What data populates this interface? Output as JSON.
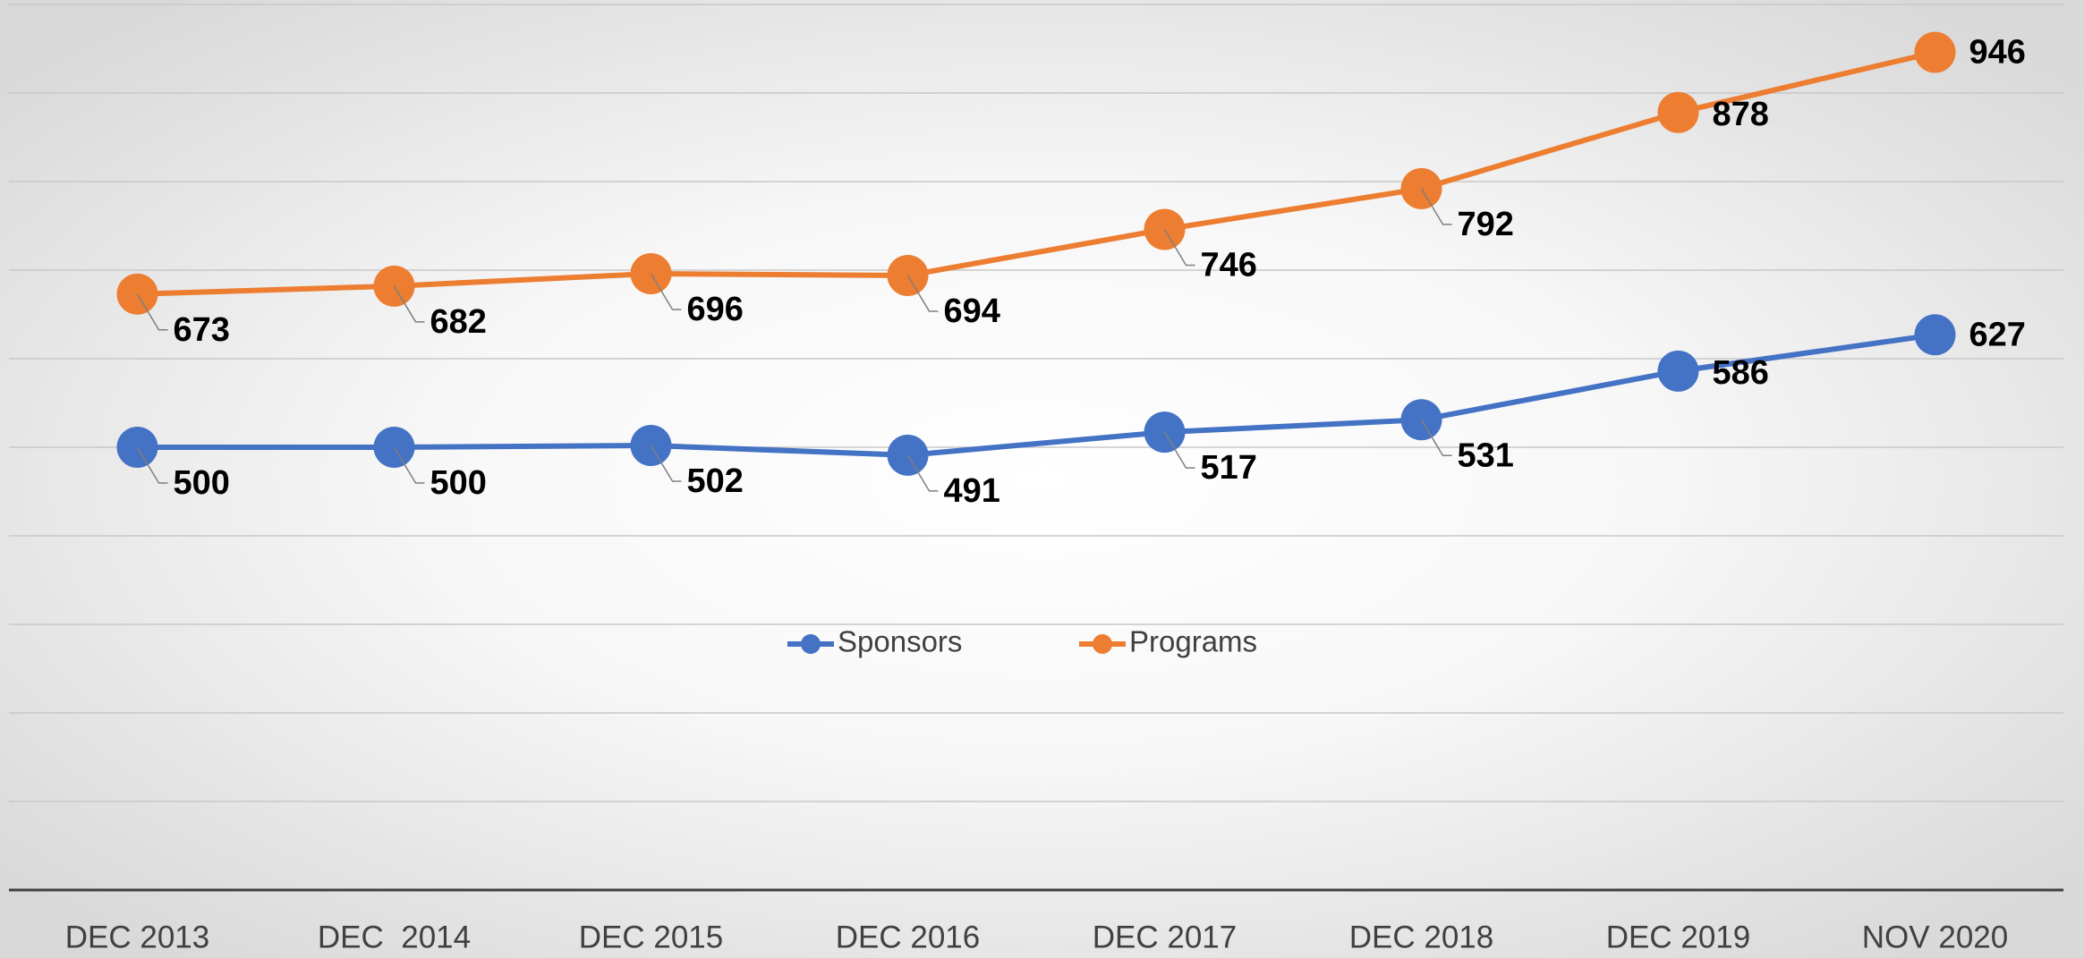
{
  "chart_data": {
    "type": "line",
    "categories": [
      "DEC 2013",
      "DEC  2014",
      "DEC 2015",
      "DEC 2016",
      "DEC 2017",
      "DEC 2018",
      "DEC 2019",
      "NOV 2020"
    ],
    "series": [
      {
        "name": "Sponsors",
        "color": "#4472c4",
        "values": [
          500,
          500,
          502,
          491,
          517,
          531,
          586,
          627
        ]
      },
      {
        "name": "Programs",
        "color": "#ed7d31",
        "values": [
          673,
          682,
          696,
          694,
          746,
          792,
          878,
          946
        ]
      }
    ],
    "ylim": [
      0,
      1000
    ],
    "yticks": [
      0,
      100,
      200,
      300,
      400,
      500,
      600,
      700,
      800,
      900,
      1000
    ],
    "grid": true,
    "legend": "center"
  }
}
